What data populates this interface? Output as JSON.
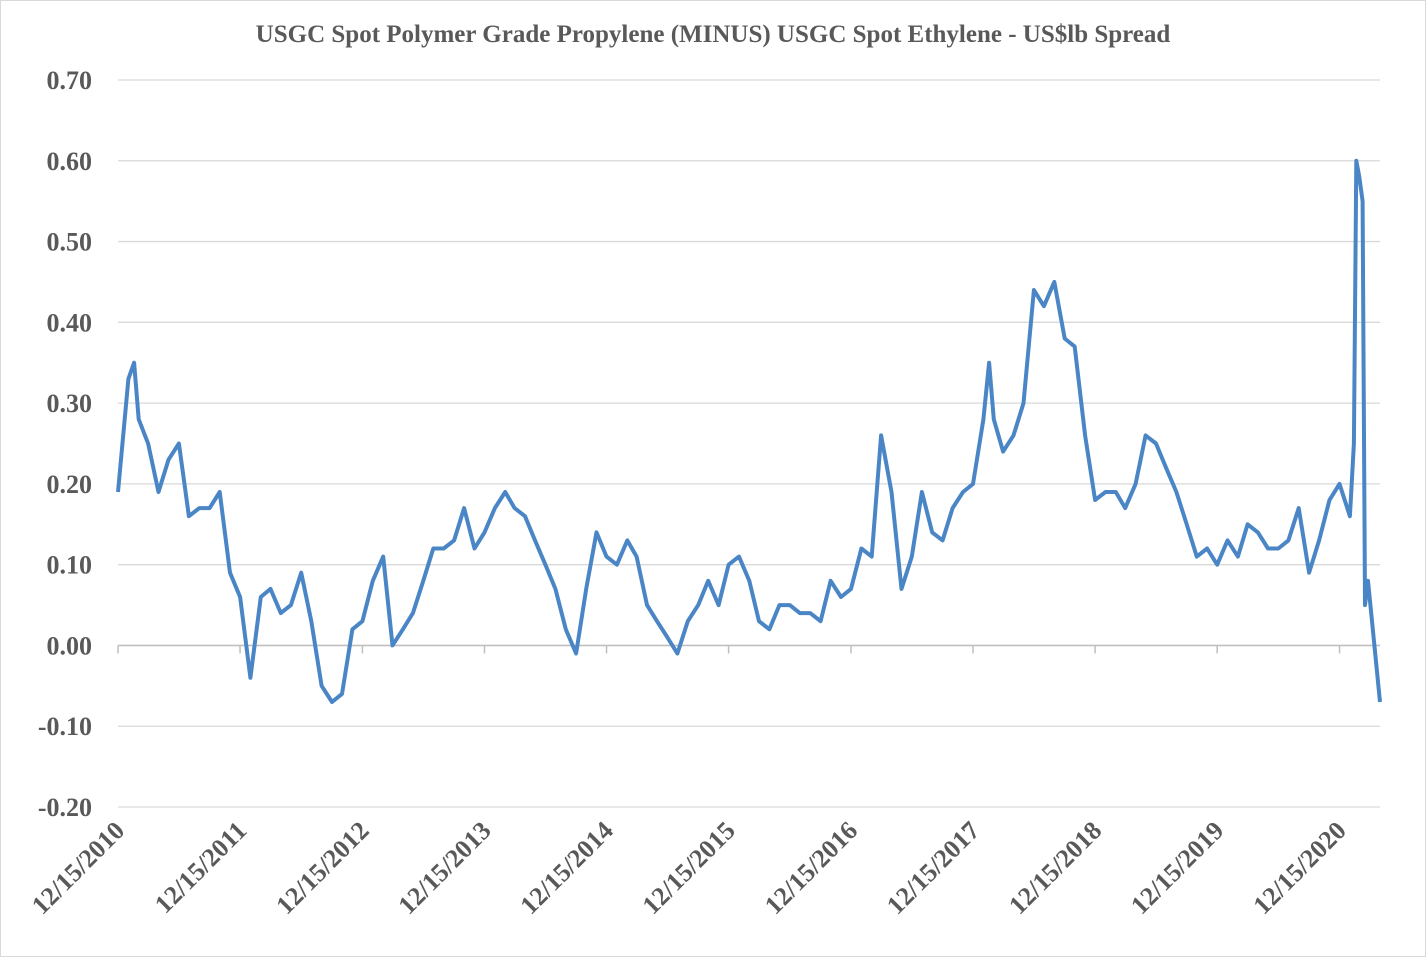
{
  "chart_data": {
    "type": "line",
    "title": "USGC Spot Polymer Grade Propylene (MINUS) USGC Spot Ethylene - US$lb Spread",
    "color": "#4a86c5",
    "x": [
      "12/15/2010",
      "01/15/2011",
      "02/01/2011",
      "02/15/2011",
      "03/15/2011",
      "04/15/2011",
      "05/15/2011",
      "06/15/2011",
      "07/15/2011",
      "08/15/2011",
      "09/15/2011",
      "10/15/2011",
      "11/15/2011",
      "12/15/2011",
      "01/15/2012",
      "02/15/2012",
      "03/15/2012",
      "04/15/2012",
      "05/15/2012",
      "06/15/2012",
      "07/15/2012",
      "08/15/2012",
      "09/15/2012",
      "10/15/2012",
      "11/15/2012",
      "12/15/2012",
      "01/15/2013",
      "02/15/2013",
      "03/15/2013",
      "04/15/2013",
      "05/15/2013",
      "06/15/2013",
      "07/15/2013",
      "08/15/2013",
      "09/15/2013",
      "10/15/2013",
      "11/15/2013",
      "12/15/2013",
      "01/15/2014",
      "02/15/2014",
      "03/15/2014",
      "04/15/2014",
      "05/15/2014",
      "06/15/2014",
      "07/15/2014",
      "08/15/2014",
      "09/15/2014",
      "10/15/2014",
      "11/15/2014",
      "12/15/2014",
      "01/15/2015",
      "02/15/2015",
      "03/15/2015",
      "04/15/2015",
      "05/15/2015",
      "06/15/2015",
      "07/15/2015",
      "08/15/2015",
      "09/15/2015",
      "10/15/2015",
      "11/15/2015",
      "12/15/2015",
      "01/15/2016",
      "02/15/2016",
      "03/15/2016",
      "04/15/2016",
      "05/15/2016",
      "06/15/2016",
      "07/15/2016",
      "08/15/2016",
      "09/15/2016",
      "10/15/2016",
      "11/15/2016",
      "12/15/2016",
      "01/15/2017",
      "02/15/2017",
      "03/15/2017",
      "04/15/2017",
      "05/15/2017",
      "06/15/2017",
      "07/15/2017",
      "08/15/2017",
      "09/15/2017",
      "10/15/2017",
      "11/15/2017",
      "12/15/2017",
      "01/15/2018",
      "02/01/2018",
      "02/15/2018",
      "03/15/2018",
      "04/15/2018",
      "05/15/2018",
      "06/15/2018",
      "07/15/2018",
      "08/15/2018",
      "09/15/2018",
      "10/15/2018",
      "11/15/2018",
      "12/15/2018",
      "01/15/2019",
      "02/15/2019",
      "03/15/2019",
      "04/15/2019",
      "05/15/2019",
      "06/15/2019",
      "07/15/2019",
      "08/15/2019",
      "09/15/2019",
      "10/15/2019",
      "11/15/2019",
      "12/15/2019",
      "01/15/2020",
      "02/15/2020",
      "03/15/2020",
      "04/15/2020",
      "05/15/2020",
      "06/15/2020",
      "07/15/2020",
      "08/15/2020",
      "09/15/2020",
      "10/15/2020",
      "11/15/2020",
      "12/15/2020",
      "01/15/2021",
      "01/27/2021",
      "02/03/2021",
      "02/12/2021",
      "02/22/2021",
      "03/01/2021",
      "03/10/2021",
      "03/22/2021",
      "04/15/2021"
    ],
    "values": [
      0.19,
      0.33,
      0.35,
      0.28,
      0.25,
      0.19,
      0.23,
      0.25,
      0.16,
      0.17,
      0.17,
      0.19,
      0.09,
      0.06,
      -0.04,
      0.06,
      0.07,
      0.04,
      0.05,
      0.09,
      0.03,
      -0.05,
      -0.07,
      -0.06,
      0.02,
      0.03,
      0.08,
      0.11,
      0.0,
      0.02,
      0.04,
      0.08,
      0.12,
      0.12,
      0.13,
      0.17,
      0.12,
      0.14,
      0.17,
      0.19,
      0.17,
      0.16,
      0.13,
      0.1,
      0.07,
      0.02,
      -0.01,
      0.07,
      0.14,
      0.11,
      0.1,
      0.13,
      0.11,
      0.05,
      0.03,
      0.01,
      -0.01,
      0.03,
      0.05,
      0.08,
      0.05,
      0.1,
      0.11,
      0.08,
      0.03,
      0.02,
      0.05,
      0.05,
      0.04,
      0.04,
      0.03,
      0.08,
      0.06,
      0.07,
      0.12,
      0.11,
      0.26,
      0.19,
      0.07,
      0.11,
      0.19,
      0.14,
      0.13,
      0.17,
      0.19,
      0.2,
      0.28,
      0.35,
      0.28,
      0.24,
      0.26,
      0.3,
      0.44,
      0.42,
      0.45,
      0.38,
      0.37,
      0.26,
      0.18,
      0.19,
      0.19,
      0.17,
      0.2,
      0.26,
      0.25,
      0.22,
      0.19,
      0.15,
      0.11,
      0.12,
      0.1,
      0.13,
      0.11,
      0.15,
      0.14,
      0.12,
      0.12,
      0.13,
      0.17,
      0.09,
      0.13,
      0.18,
      0.2,
      0.16,
      0.25,
      0.6,
      0.58,
      0.55,
      0.05,
      0.08,
      0.03,
      -0.07
    ],
    "xlim": [
      "12/15/2010",
      "04/15/2021"
    ],
    "xticks": [
      "12/15/2010",
      "12/15/2011",
      "12/15/2012",
      "12/15/2013",
      "12/15/2014",
      "12/15/2015",
      "12/15/2016",
      "12/15/2017",
      "12/15/2018",
      "12/15/2019",
      "12/15/2020"
    ],
    "ylim": [
      -0.2,
      0.7
    ],
    "yticks": [
      {
        "value": -0.2,
        "label": "-0.20"
      },
      {
        "value": -0.1,
        "label": "-0.10"
      },
      {
        "value": 0,
        "label": "0.00"
      },
      {
        "value": 0.1,
        "label": "0.10"
      },
      {
        "value": 0.2,
        "label": "0.20"
      },
      {
        "value": 0.3,
        "label": "0.30"
      },
      {
        "value": 0.4,
        "label": "0.40"
      },
      {
        "value": 0.5,
        "label": "0.50"
      },
      {
        "value": 0.6,
        "label": "0.60"
      },
      {
        "value": 0.7,
        "label": "0.70"
      }
    ],
    "grid": true
  }
}
